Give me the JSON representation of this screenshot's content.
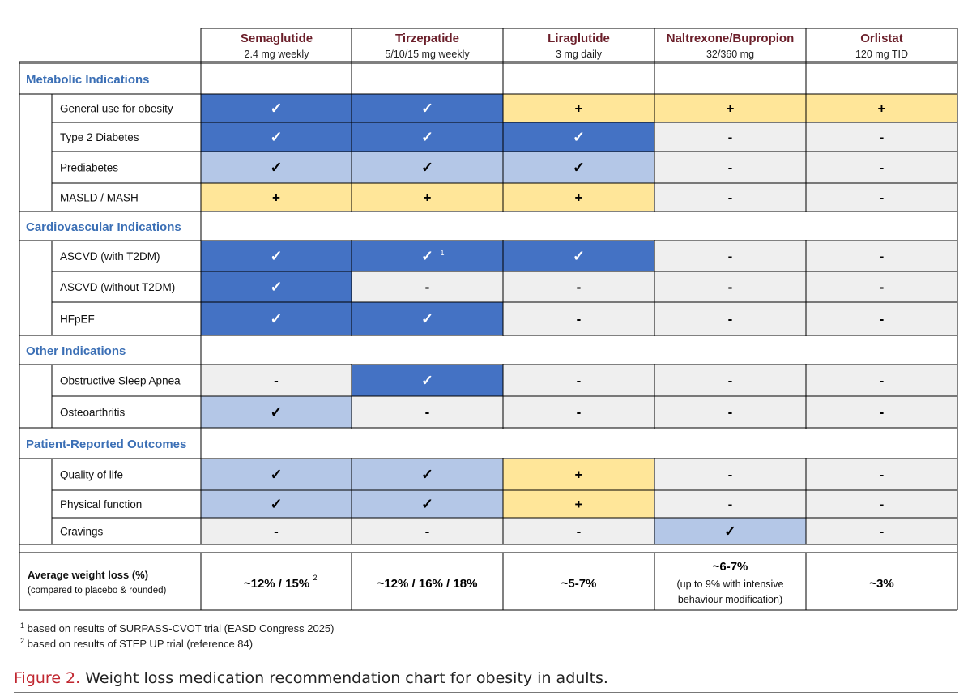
{
  "colors": {
    "dark_blue": "#4472c4",
    "light_blue": "#b4c7e7",
    "yellow": "#ffe699",
    "grey": "#efefef",
    "header_text": "#6b1f2a",
    "section_text": "#3b6fb5",
    "caption_label": "#c0262f"
  },
  "chart_data": {
    "type": "table",
    "columns": [
      {
        "name": "Semaglutide",
        "dose": "2.4 mg weekly"
      },
      {
        "name": "Tirzepatide",
        "dose": "5/10/15 mg weekly"
      },
      {
        "name": "Liraglutide",
        "dose": "3 mg daily"
      },
      {
        "name": "Naltrexone/Bupropion",
        "dose": "32/360 mg"
      },
      {
        "name": "Orlistat",
        "dose": "120 mg TID"
      }
    ],
    "legend_note": "Cell fill: dark blue = strong indication, light blue = supported, yellow = '+' partial, grey = '-' none",
    "sections": [
      {
        "title": "Metabolic Indications",
        "rows": [
          {
            "label": "General use for obesity",
            "cells": [
              {
                "v": "✓",
                "c": "dark_blue"
              },
              {
                "v": "✓",
                "c": "dark_blue"
              },
              {
                "v": "+",
                "c": "yellow"
              },
              {
                "v": "+",
                "c": "yellow"
              },
              {
                "v": "+",
                "c": "yellow"
              }
            ]
          },
          {
            "label": "Type 2 Diabetes",
            "cells": [
              {
                "v": "✓",
                "c": "dark_blue"
              },
              {
                "v": "✓",
                "c": "dark_blue"
              },
              {
                "v": "✓",
                "c": "dark_blue"
              },
              {
                "v": "-",
                "c": "grey"
              },
              {
                "v": "-",
                "c": "grey"
              }
            ]
          },
          {
            "label": "Prediabetes",
            "cells": [
              {
                "v": "✓",
                "c": "light_blue"
              },
              {
                "v": "✓",
                "c": "light_blue"
              },
              {
                "v": "✓",
                "c": "light_blue"
              },
              {
                "v": "-",
                "c": "grey"
              },
              {
                "v": "-",
                "c": "grey"
              }
            ]
          },
          {
            "label": "MASLD / MASH",
            "cells": [
              {
                "v": "+",
                "c": "yellow"
              },
              {
                "v": "+",
                "c": "yellow"
              },
              {
                "v": "+",
                "c": "yellow"
              },
              {
                "v": "-",
                "c": "grey"
              },
              {
                "v": "-",
                "c": "grey"
              }
            ]
          }
        ]
      },
      {
        "title": "Cardiovascular Indications",
        "rows": [
          {
            "label": "ASCVD (with T2DM)",
            "cells": [
              {
                "v": "✓",
                "c": "dark_blue"
              },
              {
                "v": "✓",
                "c": "dark_blue",
                "sup": "1"
              },
              {
                "v": "✓",
                "c": "dark_blue"
              },
              {
                "v": "-",
                "c": "grey"
              },
              {
                "v": "-",
                "c": "grey"
              }
            ]
          },
          {
            "label": "ASCVD (without T2DM)",
            "cells": [
              {
                "v": "✓",
                "c": "dark_blue"
              },
              {
                "v": "-",
                "c": "grey"
              },
              {
                "v": "-",
                "c": "grey"
              },
              {
                "v": "-",
                "c": "grey"
              },
              {
                "v": "-",
                "c": "grey"
              }
            ]
          },
          {
            "label": "HFpEF",
            "cells": [
              {
                "v": "✓",
                "c": "dark_blue"
              },
              {
                "v": "✓",
                "c": "dark_blue"
              },
              {
                "v": "-",
                "c": "grey"
              },
              {
                "v": "-",
                "c": "grey"
              },
              {
                "v": "-",
                "c": "grey"
              }
            ]
          }
        ]
      },
      {
        "title": "Other Indications",
        "rows": [
          {
            "label": "Obstructive Sleep Apnea",
            "cells": [
              {
                "v": "-",
                "c": "grey"
              },
              {
                "v": "✓",
                "c": "dark_blue"
              },
              {
                "v": "-",
                "c": "grey"
              },
              {
                "v": "-",
                "c": "grey"
              },
              {
                "v": "-",
                "c": "grey"
              }
            ]
          },
          {
            "label": "Osteoarthritis",
            "cells": [
              {
                "v": "✓",
                "c": "light_blue"
              },
              {
                "v": "-",
                "c": "grey"
              },
              {
                "v": "-",
                "c": "grey"
              },
              {
                "v": "-",
                "c": "grey"
              },
              {
                "v": "-",
                "c": "grey"
              }
            ]
          }
        ]
      },
      {
        "title": "Patient-Reported Outcomes",
        "rows": [
          {
            "label": "Quality of life",
            "cells": [
              {
                "v": "✓",
                "c": "light_blue"
              },
              {
                "v": "✓",
                "c": "light_blue"
              },
              {
                "v": "+",
                "c": "yellow"
              },
              {
                "v": "-",
                "c": "grey"
              },
              {
                "v": "-",
                "c": "grey"
              }
            ]
          },
          {
            "label": "Physical function",
            "cells": [
              {
                "v": "✓",
                "c": "light_blue"
              },
              {
                "v": "✓",
                "c": "light_blue"
              },
              {
                "v": "+",
                "c": "yellow"
              },
              {
                "v": "-",
                "c": "grey"
              },
              {
                "v": "-",
                "c": "grey"
              }
            ]
          },
          {
            "label": "Cravings",
            "cells": [
              {
                "v": "-",
                "c": "grey"
              },
              {
                "v": "-",
                "c": "grey"
              },
              {
                "v": "-",
                "c": "grey"
              },
              {
                "v": "✓",
                "c": "light_blue"
              },
              {
                "v": "-",
                "c": "grey"
              }
            ]
          }
        ]
      }
    ],
    "weight_loss": {
      "label": "Average weight loss (%)",
      "sublabel": "(compared to placebo & rounded)",
      "values": [
        {
          "main": "~12% / 15%",
          "sup": "2"
        },
        {
          "main": "~12% / 16% / 18%"
        },
        {
          "main": "~5-7%"
        },
        {
          "main": "~6-7%",
          "note1": "(up to 9% with intensive",
          "note2": "behaviour modification)"
        },
        {
          "main": "~3%"
        }
      ]
    }
  },
  "footnotes": [
    {
      "mark": "1",
      "text": "based on results of SURPASS-CVOT trial (EASD Congress 2025)"
    },
    {
      "mark": "2",
      "text": "based on results of STEP UP trial (reference 84)"
    }
  ],
  "caption": {
    "label": "Figure 2.",
    "text": " Weight loss medication recommendation chart for obesity in adults."
  }
}
